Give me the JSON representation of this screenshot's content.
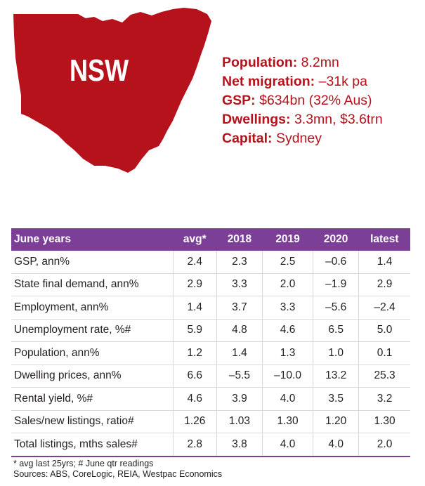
{
  "state_label": "NSW",
  "colors": {
    "map_fill": "#b5121b",
    "header_bg": "#7b3f98",
    "fact_text": "#b5121b"
  },
  "facts": [
    {
      "label": "Population:",
      "value": "8.2mn"
    },
    {
      "label": "Net migration:",
      "value": "–31k pa"
    },
    {
      "label": "GSP:",
      "value": "$634bn (32% Aus)"
    },
    {
      "label": "Dwellings:",
      "value": "3.3mn, $3.6trn"
    },
    {
      "label": "Capital:",
      "value": "Sydney"
    }
  ],
  "table": {
    "headers": [
      "June years",
      "avg*",
      "2018",
      "2019",
      "2020",
      "latest"
    ],
    "rows": [
      [
        "GSP, ann%",
        "2.4",
        "2.3",
        "2.5",
        "–0.6",
        "1.4"
      ],
      [
        "State final demand, ann%",
        "2.9",
        "3.3",
        "2.0",
        "–1.9",
        "2.9"
      ],
      [
        "Employment, ann%",
        "1.4",
        "3.7",
        "3.3",
        "–5.6",
        "–2.4"
      ],
      [
        "Unemployment rate, %#",
        "5.9",
        "4.8",
        "4.6",
        "6.5",
        "5.0"
      ],
      [
        "Population, ann%",
        "1.2",
        "1.4",
        "1.3",
        "1.0",
        "0.1"
      ],
      [
        "Dwelling prices, ann%",
        "6.6",
        "–5.5",
        "–10.0",
        "13.2",
        "25.3"
      ],
      [
        "Rental yield, %#",
        "4.6",
        "3.9",
        "4.0",
        "3.5",
        "3.2"
      ],
      [
        "Sales/new listings, ratio#",
        "1.26",
        "1.03",
        "1.30",
        "1.20",
        "1.30"
      ],
      [
        "Total listings, mths sales#",
        "2.8",
        "3.8",
        "4.0",
        "4.0",
        "2.0"
      ]
    ]
  },
  "footnotes": [
    "* avg last 25yrs; # June qtr readings",
    "Sources: ABS, CoreLogic, REIA, Westpac Economics"
  ]
}
